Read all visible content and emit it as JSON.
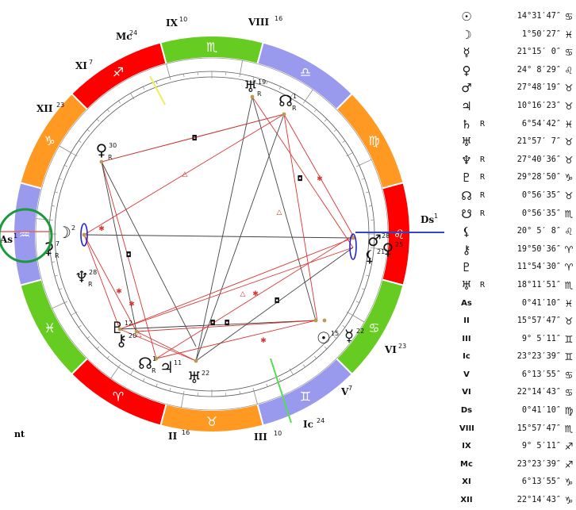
{
  "chart_labels": {
    "footer": "nt",
    "house_cusps": [
      {
        "name": "Mc",
        "deg": "24"
      },
      {
        "name": "IX",
        "deg": "10"
      },
      {
        "name": "VIII",
        "deg": "16"
      },
      {
        "name": "XI",
        "deg": "7"
      },
      {
        "name": "XII",
        "deg": "23"
      },
      {
        "name": "As",
        "deg": "1"
      },
      {
        "name": "Ds",
        "deg": "1"
      },
      {
        "name": "VI",
        "deg": "23"
      },
      {
        "name": "V",
        "deg": "7"
      },
      {
        "name": "Ic",
        "deg": "24"
      },
      {
        "name": "III",
        "deg": "10"
      },
      {
        "name": "II",
        "deg": "16"
      }
    ],
    "planets": [
      {
        "glyph": "♅",
        "deg": "19",
        "retro": "R"
      },
      {
        "glyph": "☊",
        "deg": "1",
        "retro": "R"
      },
      {
        "glyph": "♀",
        "deg": "30",
        "retro": "R"
      },
      {
        "glyph": "☽",
        "deg": "2",
        "retro": ""
      },
      {
        "glyph": "⚳",
        "deg": "7",
        "retro": "R"
      },
      {
        "glyph": "♆",
        "deg": "28",
        "retro": "R"
      },
      {
        "glyph": "♇",
        "deg": "12",
        "retro": ""
      },
      {
        "glyph": "⚷",
        "deg": "20",
        "retro": ""
      },
      {
        "glyph": "☊",
        "deg": "1",
        "retro": "R"
      },
      {
        "glyph": "♃",
        "deg": "11",
        "retro": ""
      },
      {
        "glyph": "♅",
        "deg": "22",
        "retro": ""
      },
      {
        "glyph": "☉",
        "deg": "15",
        "retro": ""
      },
      {
        "glyph": "☿",
        "deg": "22",
        "retro": ""
      },
      {
        "glyph": "♂",
        "deg": "28",
        "retro": ""
      },
      {
        "glyph": "⚸",
        "deg": "21",
        "retro": ""
      },
      {
        "glyph": "♀",
        "deg": "25",
        "retro": ""
      }
    ],
    "aspect_symbols": {
      "square": "◘",
      "trine": "△",
      "sextile": "✱",
      "opposition": "☍"
    }
  },
  "positions_table": [
    {
      "symbol": "☉",
      "retro": "",
      "position": "14°31′47″",
      "sign": "♋"
    },
    {
      "symbol": "☽",
      "retro": "",
      "position": "1°50′27″",
      "sign": "♓"
    },
    {
      "symbol": "☿",
      "retro": "",
      "position": "21°15′ 0″",
      "sign": "♋"
    },
    {
      "symbol": "♀",
      "retro": "",
      "position": "24° 8′29″",
      "sign": "♌"
    },
    {
      "symbol": "♂",
      "retro": "",
      "position": "27°48′19″",
      "sign": "♉"
    },
    {
      "symbol": "♃",
      "retro": "",
      "position": "10°16′23″",
      "sign": "♉"
    },
    {
      "symbol": "♄",
      "retro": "R",
      "position": "6°54′42″",
      "sign": "♓"
    },
    {
      "symbol": "♅",
      "retro": "",
      "position": "21°57′ 7″",
      "sign": "♉"
    },
    {
      "symbol": "♆",
      "retro": "R",
      "position": "27°40′36″",
      "sign": "♉"
    },
    {
      "symbol": "♇",
      "retro": "R",
      "position": "29°28′50″",
      "sign": "♑"
    },
    {
      "symbol": "☊",
      "retro": "R",
      "position": "0°56′35″",
      "sign": "♉"
    },
    {
      "symbol": "☋",
      "retro": "R",
      "position": "0°56′35″",
      "sign": "♏"
    },
    {
      "symbol": "⚸",
      "retro": "",
      "position": "20° 5′ 8″",
      "sign": "♌"
    },
    {
      "symbol": "⚷",
      "retro": "",
      "position": "19°50′36″",
      "sign": "♈"
    },
    {
      "symbol": "♇",
      "retro": "",
      "position": "11°54′30″",
      "sign": "♈"
    },
    {
      "symbol": "♅",
      "retro": "R",
      "position": "18°11′51″",
      "sign": "♏"
    },
    {
      "symbol": "As",
      "retro": "",
      "position": "0°41′10″",
      "sign": "♓"
    },
    {
      "symbol": "II",
      "retro": "",
      "position": "15°57′47″",
      "sign": "♉"
    },
    {
      "symbol": "III",
      "retro": "",
      "position": "9° 5′11″",
      "sign": "♊"
    },
    {
      "symbol": "Ic",
      "retro": "",
      "position": "23°23′39″",
      "sign": "♊"
    },
    {
      "symbol": "V",
      "retro": "",
      "position": "6°13′55″",
      "sign": "♋"
    },
    {
      "symbol": "VI",
      "retro": "",
      "position": "22°14′43″",
      "sign": "♋"
    },
    {
      "symbol": "Ds",
      "retro": "",
      "position": "0°41′10″",
      "sign": "♍"
    },
    {
      "symbol": "VIII",
      "retro": "",
      "position": "15°57′47″",
      "sign": "♏"
    },
    {
      "symbol": "IX",
      "retro": "",
      "position": "9° 5′11″",
      "sign": "♐"
    },
    {
      "symbol": "Mc",
      "retro": "",
      "position": "23°23′39″",
      "sign": "♐"
    },
    {
      "symbol": "XI",
      "retro": "",
      "position": "6°13′55″",
      "sign": "♑"
    },
    {
      "symbol": "XII",
      "retro": "",
      "position": "22°14′43″",
      "sign": "♑"
    }
  ],
  "zodiac_ring": [
    {
      "glyph": "♐",
      "color": "#ff0000"
    },
    {
      "glyph": "♏",
      "color": "#66cc22"
    },
    {
      "glyph": "♎",
      "color": "#9999ee"
    },
    {
      "glyph": "♍",
      "color": "#ff9922"
    },
    {
      "glyph": "♌",
      "color": "#ff0000"
    },
    {
      "glyph": "♋",
      "color": "#66cc22"
    },
    {
      "glyph": "♊",
      "color": "#9999ee"
    },
    {
      "glyph": "♉",
      "color": "#ff9922"
    },
    {
      "glyph": "♈",
      "color": "#ff0000"
    },
    {
      "glyph": "♓",
      "color": "#66cc22"
    },
    {
      "glyph": "♒",
      "color": "#9999ee"
    },
    {
      "glyph": "♑",
      "color": "#ff9922"
    }
  ],
  "colors": {
    "aspect_red": "#dd3333",
    "aspect_dark": "#444444",
    "highlight_circle": "#1a9a3a",
    "axis_blue": "#3344cc"
  }
}
